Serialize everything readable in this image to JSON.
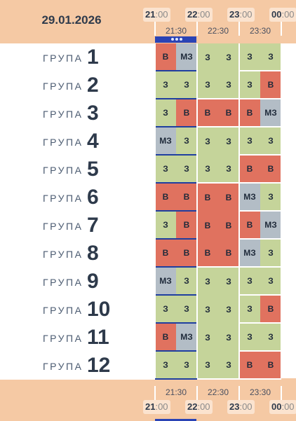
{
  "date": "29.01.2026",
  "group_word": "ГРУПА",
  "hours": [
    {
      "h": "21",
      "m": ":00"
    },
    {
      "h": "22",
      "m": ":00"
    },
    {
      "h": "23",
      "m": ":00"
    },
    {
      "h": "00",
      "m": ":00"
    }
  ],
  "half_hours": [
    "21:30",
    "22:30",
    "23:30"
  ],
  "colors": {
    "z": "#c5d49a",
    "v": "#e0725f",
    "mz": "#b3bdc6",
    "header": "#f5c9a4",
    "current": "#2a43b5"
  },
  "groups": [
    {
      "number": "1",
      "slots": [
        "В",
        "МЗ",
        "З",
        "З",
        "З",
        "З"
      ]
    },
    {
      "number": "2",
      "slots": [
        "З",
        "З",
        "З",
        "З",
        "З",
        "В"
      ]
    },
    {
      "number": "3",
      "slots": [
        "З",
        "В",
        "В",
        "В",
        "В",
        "МЗ"
      ]
    },
    {
      "number": "4",
      "slots": [
        "МЗ",
        "З",
        "З",
        "З",
        "З",
        "З"
      ]
    },
    {
      "number": "5",
      "slots": [
        "З",
        "З",
        "З",
        "З",
        "В",
        "В"
      ]
    },
    {
      "number": "6",
      "slots": [
        "В",
        "В",
        "В",
        "В",
        "МЗ",
        "З"
      ]
    },
    {
      "number": "7",
      "slots": [
        "З",
        "В",
        "В",
        "В",
        "В",
        "МЗ"
      ]
    },
    {
      "number": "8",
      "slots": [
        "В",
        "В",
        "В",
        "В",
        "МЗ",
        "З"
      ]
    },
    {
      "number": "9",
      "slots": [
        "МЗ",
        "З",
        "З",
        "З",
        "З",
        "З"
      ]
    },
    {
      "number": "10",
      "slots": [
        "З",
        "З",
        "З",
        "З",
        "З",
        "В"
      ]
    },
    {
      "number": "11",
      "slots": [
        "В",
        "МЗ",
        "З",
        "З",
        "З",
        "З"
      ]
    },
    {
      "number": "12",
      "slots": [
        "З",
        "З",
        "З",
        "З",
        "В",
        "В"
      ]
    }
  ]
}
